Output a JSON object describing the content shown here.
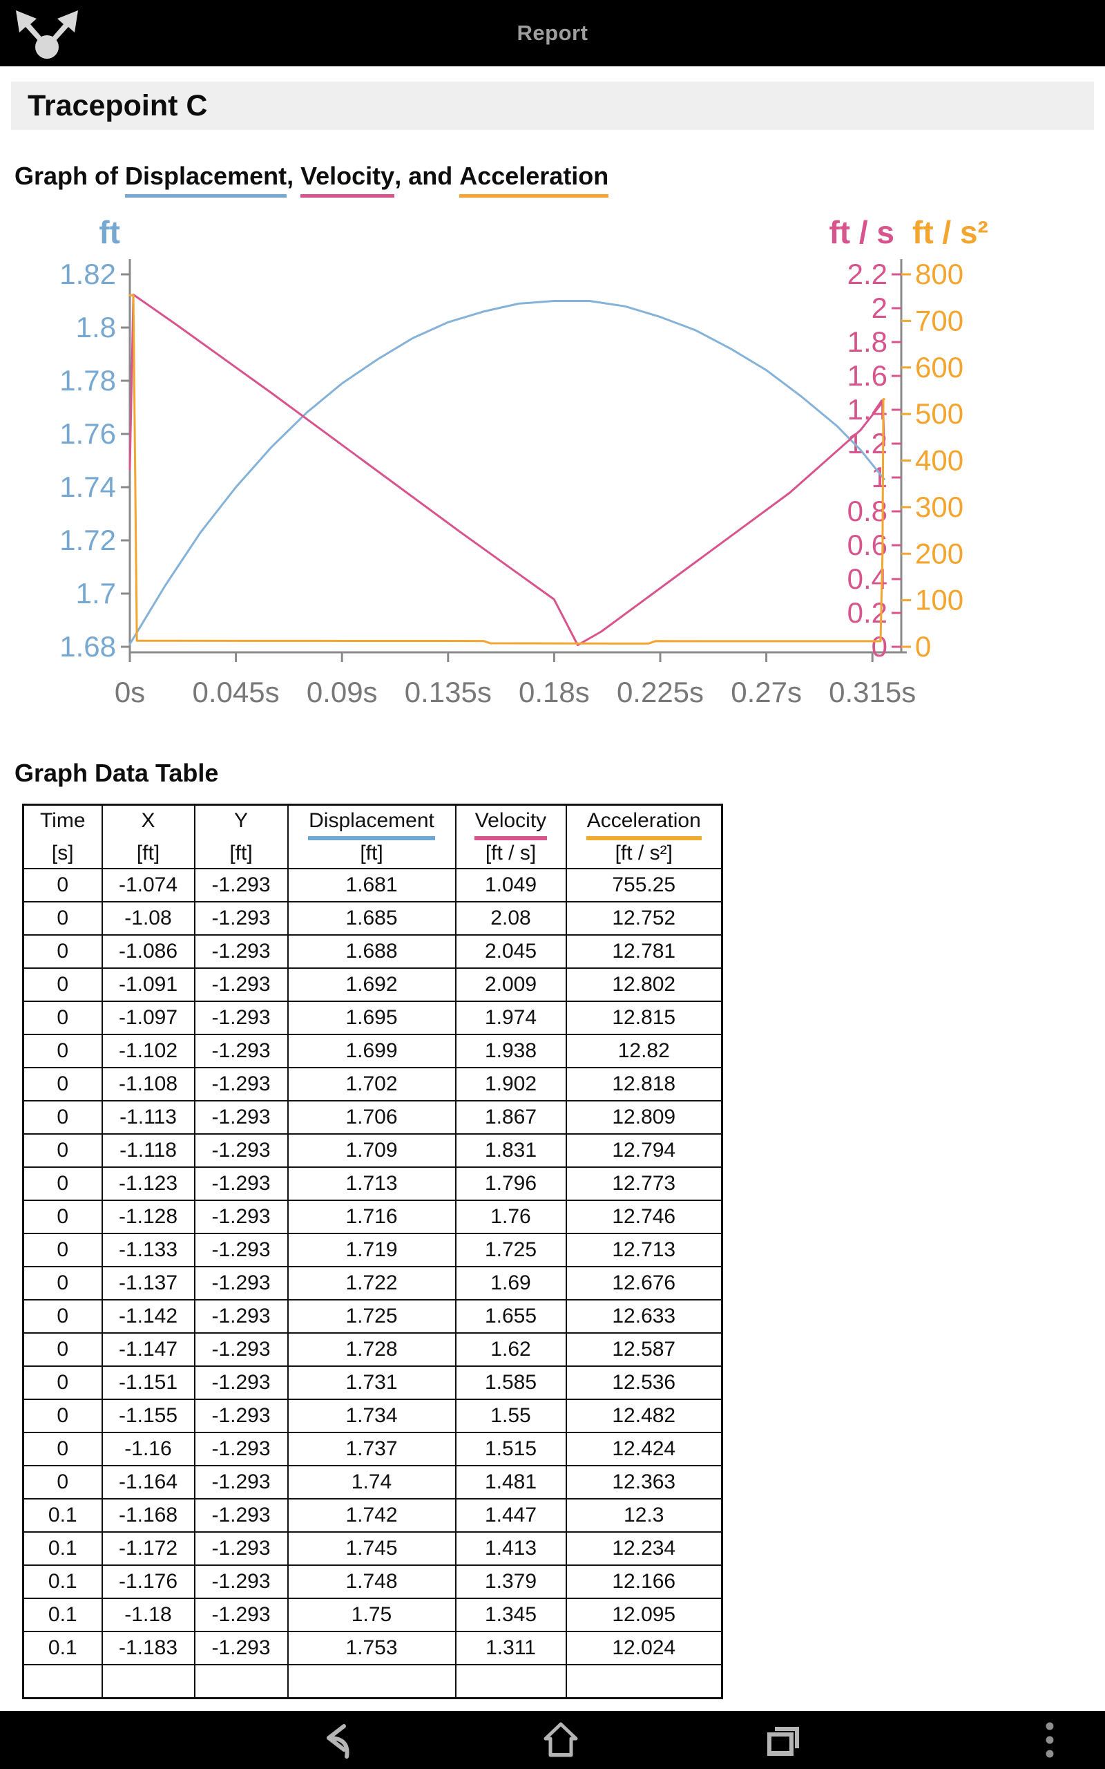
{
  "topbar": {
    "title": "Report"
  },
  "page": {
    "section_title": "Tracepoint C",
    "graph_heading": {
      "prefix": "Graph of ",
      "displacement": "Displacement",
      "sep1": ", ",
      "velocity": "Velocity",
      "sep2": ", and ",
      "acceleration": "Acceleration"
    },
    "table_heading": "Graph Data Table"
  },
  "colors": {
    "displacement_blue": "#76a8d1",
    "velocity_pink": "#d8548c",
    "acceleration_orange": "#f3a52f",
    "axis_gray": "#8a8a8a",
    "x_label_gray": "#787878"
  },
  "chart_data": {
    "type": "line",
    "title": "Graph of Displacement, Velocity, and Acceleration",
    "x_tick_labels": [
      "0s",
      "0.045s",
      "0.09s",
      "0.135s",
      "0.18s",
      "0.225s",
      "0.27s",
      "0.315s"
    ],
    "x_tick_times": [
      0,
      0.045,
      0.09,
      0.135,
      0.18,
      0.225,
      0.27,
      0.315
    ],
    "time_domain": [
      0,
      0.327
    ],
    "grid": false,
    "legend": "none (colored axis titles act as legend)",
    "axes": {
      "displacement": {
        "title": "ft",
        "side": "left",
        "min": 1.68,
        "max": 1.82,
        "color": "#76a8d1",
        "ticks": [
          "1.82",
          "1.8",
          "1.78",
          "1.76",
          "1.74",
          "1.72",
          "1.7",
          "1.68"
        ]
      },
      "velocity": {
        "title": "ft / s",
        "side": "right-inner",
        "min": 0,
        "max": 2.2,
        "color": "#d8548c",
        "ticks": [
          "2.2",
          "2",
          "1.8",
          "1.6",
          "1.4",
          "1.2",
          "1",
          "0.8",
          "0.6",
          "0.4",
          "0.2",
          "0"
        ]
      },
      "acceleration": {
        "title": "ft / s²",
        "side": "right-outer",
        "min": 0,
        "max": 800,
        "color": "#f3a52f",
        "ticks": [
          "800",
          "700",
          "600",
          "500",
          "400",
          "300",
          "200",
          "100",
          "0"
        ]
      }
    },
    "series": [
      {
        "name": "Displacement",
        "axis": "displacement",
        "color": "#85b2d8",
        "points": [
          [
            0,
            1.681
          ],
          [
            0.015,
            1.703
          ],
          [
            0.03,
            1.723
          ],
          [
            0.045,
            1.74
          ],
          [
            0.06,
            1.755
          ],
          [
            0.075,
            1.768
          ],
          [
            0.09,
            1.779
          ],
          [
            0.105,
            1.788
          ],
          [
            0.12,
            1.796
          ],
          [
            0.135,
            1.802
          ],
          [
            0.15,
            1.806
          ],
          [
            0.165,
            1.809
          ],
          [
            0.18,
            1.81
          ],
          [
            0.195,
            1.81
          ],
          [
            0.21,
            1.808
          ],
          [
            0.225,
            1.804
          ],
          [
            0.24,
            1.799
          ],
          [
            0.255,
            1.792
          ],
          [
            0.27,
            1.784
          ],
          [
            0.285,
            1.774
          ],
          [
            0.3,
            1.763
          ],
          [
            0.31,
            1.754
          ],
          [
            0.32,
            1.743
          ]
        ]
      },
      {
        "name": "Velocity",
        "axis": "velocity",
        "color": "#d8548c",
        "points": [
          [
            0,
            1.049
          ],
          [
            0.0015,
            2.08
          ],
          [
            0.02,
            1.9
          ],
          [
            0.06,
            1.5
          ],
          [
            0.1,
            1.09
          ],
          [
            0.14,
            0.68
          ],
          [
            0.18,
            0.28
          ],
          [
            0.19,
            0.01
          ],
          [
            0.2,
            0.09
          ],
          [
            0.24,
            0.5
          ],
          [
            0.28,
            0.91
          ],
          [
            0.31,
            1.28
          ],
          [
            0.3185,
            1.43
          ],
          [
            0.3195,
            1.45
          ],
          [
            0.32,
            1.19
          ]
        ]
      },
      {
        "name": "Acceleration",
        "axis": "acceleration",
        "color": "#f3a52f",
        "points": [
          [
            0,
            755.25
          ],
          [
            0.0015,
            755
          ],
          [
            0.003,
            13
          ],
          [
            0.08,
            12.7
          ],
          [
            0.15,
            12.4
          ],
          [
            0.153,
            7.5
          ],
          [
            0.22,
            7
          ],
          [
            0.223,
            12.2
          ],
          [
            0.315,
            12
          ],
          [
            0.3185,
            12
          ],
          [
            0.3193,
            200
          ],
          [
            0.3197,
            532
          ],
          [
            0.32,
            532
          ]
        ]
      }
    ]
  },
  "table": {
    "columns": [
      {
        "name": "Time",
        "unit": "[s]",
        "underline": ""
      },
      {
        "name": "X",
        "unit": "[ft]",
        "underline": ""
      },
      {
        "name": "Y",
        "unit": "[ft]",
        "underline": ""
      },
      {
        "name": "Displacement",
        "unit": "[ft]",
        "underline": "#6fa8d2"
      },
      {
        "name": "Velocity",
        "unit": "[ft / s]",
        "underline": "#d8548c"
      },
      {
        "name": "Acceleration",
        "unit": "[ft / s²]",
        "underline": "#f0ac2e"
      }
    ],
    "rows": [
      [
        "0",
        "-1.074",
        "-1.293",
        "1.681",
        "1.049",
        "755.25"
      ],
      [
        "0",
        "-1.08",
        "-1.293",
        "1.685",
        "2.08",
        "12.752"
      ],
      [
        "0",
        "-1.086",
        "-1.293",
        "1.688",
        "2.045",
        "12.781"
      ],
      [
        "0",
        "-1.091",
        "-1.293",
        "1.692",
        "2.009",
        "12.802"
      ],
      [
        "0",
        "-1.097",
        "-1.293",
        "1.695",
        "1.974",
        "12.815"
      ],
      [
        "0",
        "-1.102",
        "-1.293",
        "1.699",
        "1.938",
        "12.82"
      ],
      [
        "0",
        "-1.108",
        "-1.293",
        "1.702",
        "1.902",
        "12.818"
      ],
      [
        "0",
        "-1.113",
        "-1.293",
        "1.706",
        "1.867",
        "12.809"
      ],
      [
        "0",
        "-1.118",
        "-1.293",
        "1.709",
        "1.831",
        "12.794"
      ],
      [
        "0",
        "-1.123",
        "-1.293",
        "1.713",
        "1.796",
        "12.773"
      ],
      [
        "0",
        "-1.128",
        "-1.293",
        "1.716",
        "1.76",
        "12.746"
      ],
      [
        "0",
        "-1.133",
        "-1.293",
        "1.719",
        "1.725",
        "12.713"
      ],
      [
        "0",
        "-1.137",
        "-1.293",
        "1.722",
        "1.69",
        "12.676"
      ],
      [
        "0",
        "-1.142",
        "-1.293",
        "1.725",
        "1.655",
        "12.633"
      ],
      [
        "0",
        "-1.147",
        "-1.293",
        "1.728",
        "1.62",
        "12.587"
      ],
      [
        "0",
        "-1.151",
        "-1.293",
        "1.731",
        "1.585",
        "12.536"
      ],
      [
        "0",
        "-1.155",
        "-1.293",
        "1.734",
        "1.55",
        "12.482"
      ],
      [
        "0",
        "-1.16",
        "-1.293",
        "1.737",
        "1.515",
        "12.424"
      ],
      [
        "0",
        "-1.164",
        "-1.293",
        "1.74",
        "1.481",
        "12.363"
      ],
      [
        "0.1",
        "-1.168",
        "-1.293",
        "1.742",
        "1.447",
        "12.3"
      ],
      [
        "0.1",
        "-1.172",
        "-1.293",
        "1.745",
        "1.413",
        "12.234"
      ],
      [
        "0.1",
        "-1.176",
        "-1.293",
        "1.748",
        "1.379",
        "12.166"
      ],
      [
        "0.1",
        "-1.18",
        "-1.293",
        "1.75",
        "1.345",
        "12.095"
      ],
      [
        "0.1",
        "-1.183",
        "-1.293",
        "1.753",
        "1.311",
        "12.024"
      ]
    ],
    "partial_row": true
  },
  "navbar": {
    "icons": [
      "back",
      "home",
      "recents",
      "overflow-menu"
    ]
  }
}
